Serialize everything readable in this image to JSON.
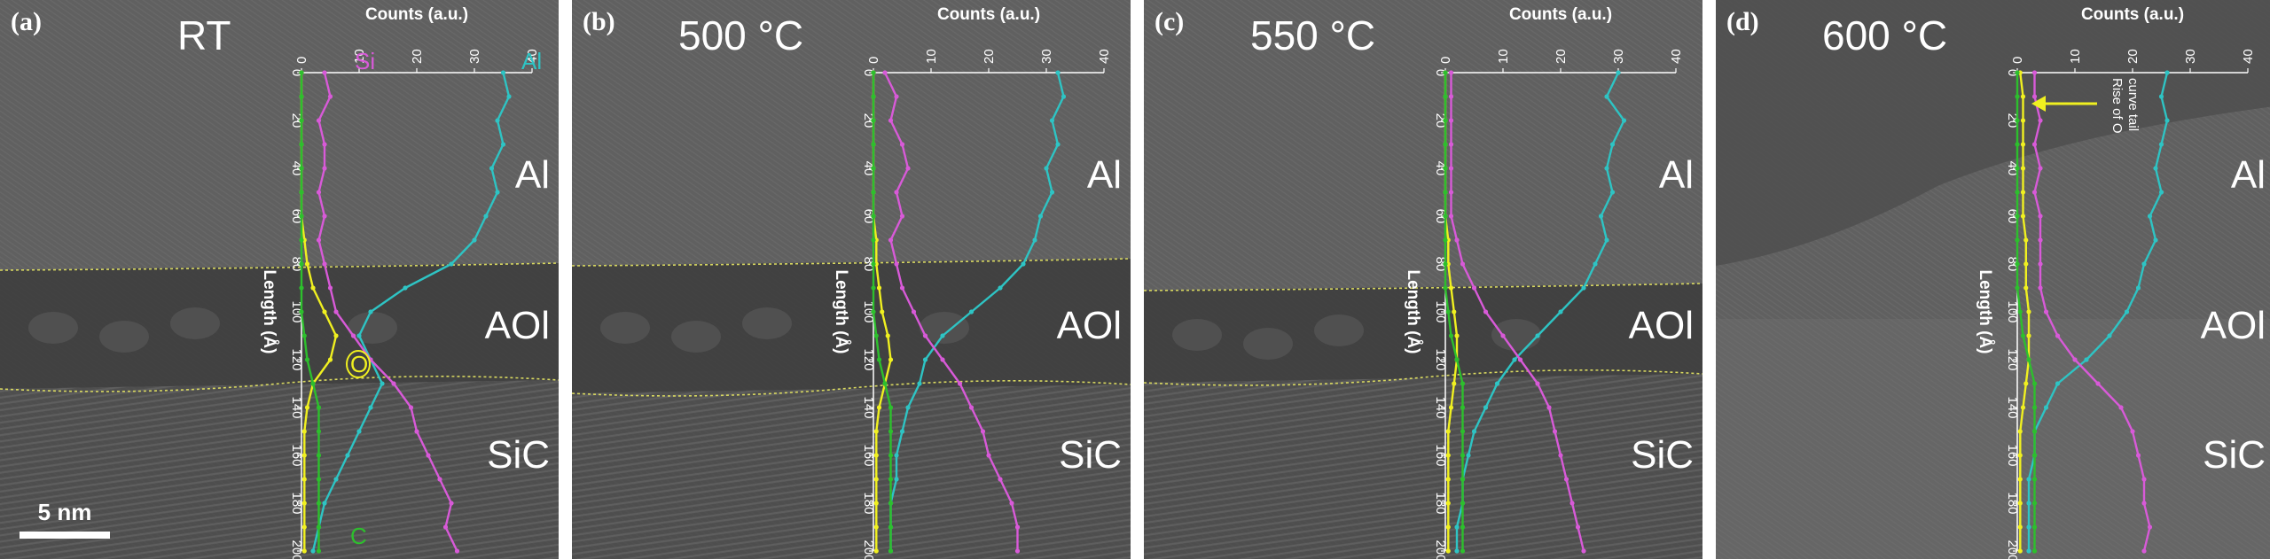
{
  "panels": [
    {
      "label": "(a)",
      "temperature": "RT",
      "layers": [
        "Al",
        "AOl",
        "SiC"
      ],
      "series_labels": {
        "Al": "Al",
        "Si": "Si",
        "O": "O",
        "C": "C"
      },
      "scale_bar": "5 nm",
      "annotation": null
    },
    {
      "label": "(b)",
      "temperature": "500 °C",
      "layers": [
        "Al",
        "AOl",
        "SiC"
      ],
      "series_labels": null,
      "scale_bar": null,
      "annotation": null
    },
    {
      "label": "(c)",
      "temperature": "550 °C",
      "layers": [
        "Al",
        "AOl",
        "SiC"
      ],
      "series_labels": null,
      "scale_bar": null,
      "annotation": null
    },
    {
      "label": "(d)",
      "temperature": "600 °C",
      "layers": [
        "Al",
        "AOl",
        "SiC"
      ],
      "series_labels": null,
      "scale_bar": null,
      "annotation": [
        "Rise of O",
        "curve tail"
      ]
    }
  ],
  "colors": {
    "Al": "#2ec4c4",
    "Si": "#d85ad8",
    "O": "#f0f020",
    "C": "#2dbf2d",
    "interface": "#d8d860"
  },
  "chart_data": {
    "type": "line",
    "xlabel": "Counts (a.u.)",
    "ylabel": "Length (Å)",
    "xlim": [
      0,
      40
    ],
    "ylim": [
      0,
      200
    ],
    "x_ticks": [
      0,
      10,
      20,
      30,
      40
    ],
    "y_ticks": [
      0,
      20,
      40,
      60,
      80,
      100,
      120,
      140,
      160,
      180,
      200
    ],
    "panels": [
      {
        "panel": "(a)",
        "length": [
          0,
          10,
          20,
          30,
          40,
          50,
          60,
          70,
          80,
          90,
          100,
          110,
          120,
          130,
          140,
          150,
          160,
          170,
          180,
          190,
          200
        ],
        "series": [
          {
            "name": "Al",
            "values": [
              35,
              36,
              34,
              35,
              33,
              34,
              32,
              30,
              26,
              18,
              12,
              10,
              12,
              14,
              12,
              10,
              8,
              6,
              4,
              3,
              2
            ]
          },
          {
            "name": "Si",
            "values": [
              4,
              5,
              3,
              4,
              4,
              3,
              4,
              3,
              4,
              5,
              6,
              9,
              12,
              16,
              19,
              20,
              22,
              24,
              26,
              25,
              27
            ]
          },
          {
            "name": "O",
            "values": [
              0,
              0,
              0,
              0,
              0,
              0,
              0,
              0.5,
              1,
              2,
              4,
              6,
              5,
              2,
              1,
              0.5,
              0.5,
              0.5,
              0.5,
              0.5,
              0.5
            ]
          },
          {
            "name": "C",
            "values": [
              0,
              0,
              0,
              0,
              0,
              0,
              0,
              0,
              0,
              0,
              0,
              0.5,
              1,
              2,
              3,
              3,
              3,
              3,
              3,
              3,
              3
            ]
          }
        ]
      },
      {
        "panel": "(b)",
        "length": [
          0,
          10,
          20,
          30,
          40,
          50,
          60,
          70,
          80,
          90,
          100,
          110,
          120,
          130,
          140,
          150,
          160,
          170,
          180,
          190,
          200
        ],
        "series": [
          {
            "name": "Al",
            "values": [
              32,
              33,
              31,
              32,
              30,
              31,
              29,
              28,
              26,
              22,
              17,
              12,
              9,
              8,
              6,
              5,
              4,
              4,
              3,
              3,
              3
            ]
          },
          {
            "name": "Si",
            "values": [
              2,
              4,
              3,
              5,
              6,
              4,
              5,
              3,
              4,
              5,
              7,
              9,
              12,
              15,
              17,
              19,
              20,
              22,
              24,
              25,
              25
            ]
          },
          {
            "name": "O",
            "values": [
              0,
              0,
              0,
              0,
              0,
              0,
              0,
              0.5,
              0.5,
              1,
              1.5,
              2.5,
              3,
              2,
              1,
              0.5,
              0.5,
              0.5,
              0.5,
              0.5,
              0.5
            ]
          },
          {
            "name": "C",
            "values": [
              0,
              0,
              0,
              0,
              0,
              0,
              0,
              0,
              0,
              0,
              0,
              0.5,
              1,
              2,
              3,
              3,
              3,
              3,
              3,
              3,
              3
            ]
          }
        ]
      },
      {
        "panel": "(c)",
        "length": [
          0,
          10,
          20,
          30,
          40,
          50,
          60,
          70,
          80,
          90,
          100,
          110,
          120,
          130,
          140,
          150,
          160,
          170,
          180,
          190,
          200
        ],
        "series": [
          {
            "name": "Al",
            "values": [
              30,
              28,
              31,
              29,
              28,
              29,
              27,
              28,
              26,
              24,
              20,
              16,
              12,
              9,
              7,
              5,
              4,
              3,
              3,
              2,
              2
            ]
          },
          {
            "name": "Si",
            "values": [
              1,
              1,
              1,
              1,
              1,
              1,
              1,
              2,
              3,
              5,
              7,
              10,
              13,
              16,
              18,
              19,
              20,
              21,
              22,
              23,
              24
            ]
          },
          {
            "name": "O",
            "values": [
              0,
              0,
              0,
              0,
              0,
              0,
              0,
              0.5,
              0.5,
              1,
              1.5,
              2,
              2,
              1.5,
              1,
              0.5,
              0.5,
              0.5,
              0.5,
              0.5,
              0.5
            ]
          },
          {
            "name": "C",
            "values": [
              0,
              0,
              0,
              0,
              0,
              0,
              0,
              0,
              0,
              0,
              0.5,
              1,
              2,
              3,
              3,
              3,
              3,
              3,
              3,
              3,
              3
            ]
          }
        ]
      },
      {
        "panel": "(d)",
        "length": [
          0,
          10,
          20,
          30,
          40,
          50,
          60,
          70,
          80,
          90,
          100,
          110,
          120,
          130,
          140,
          150,
          160,
          170,
          180,
          190,
          200
        ],
        "series": [
          {
            "name": "Al",
            "values": [
              26,
              25,
              26,
              25,
              24,
              25,
              23,
              24,
              22,
              21,
              19,
              16,
              12,
              7,
              5,
              3,
              3,
              2,
              2,
              2,
              2
            ]
          },
          {
            "name": "Si",
            "values": [
              3,
              3,
              4,
              3,
              4,
              3,
              4,
              4,
              4,
              4,
              5,
              7,
              10,
              14,
              18,
              20,
              21,
              22,
              22,
              23,
              22
            ]
          },
          {
            "name": "O",
            "values": [
              0.5,
              1,
              1,
              1,
              1,
              1,
              1,
              1.5,
              1.5,
              1.5,
              2,
              2,
              2,
              1.5,
              1,
              0.5,
              0.5,
              0.5,
              0.5,
              0.5,
              0.5
            ]
          },
          {
            "name": "C",
            "values": [
              0,
              0,
              0,
              0,
              0,
              0,
              0,
              0,
              0,
              0,
              0.5,
              1,
              2,
              3,
              3,
              3,
              3,
              3,
              3,
              3,
              3
            ]
          }
        ]
      }
    ]
  }
}
